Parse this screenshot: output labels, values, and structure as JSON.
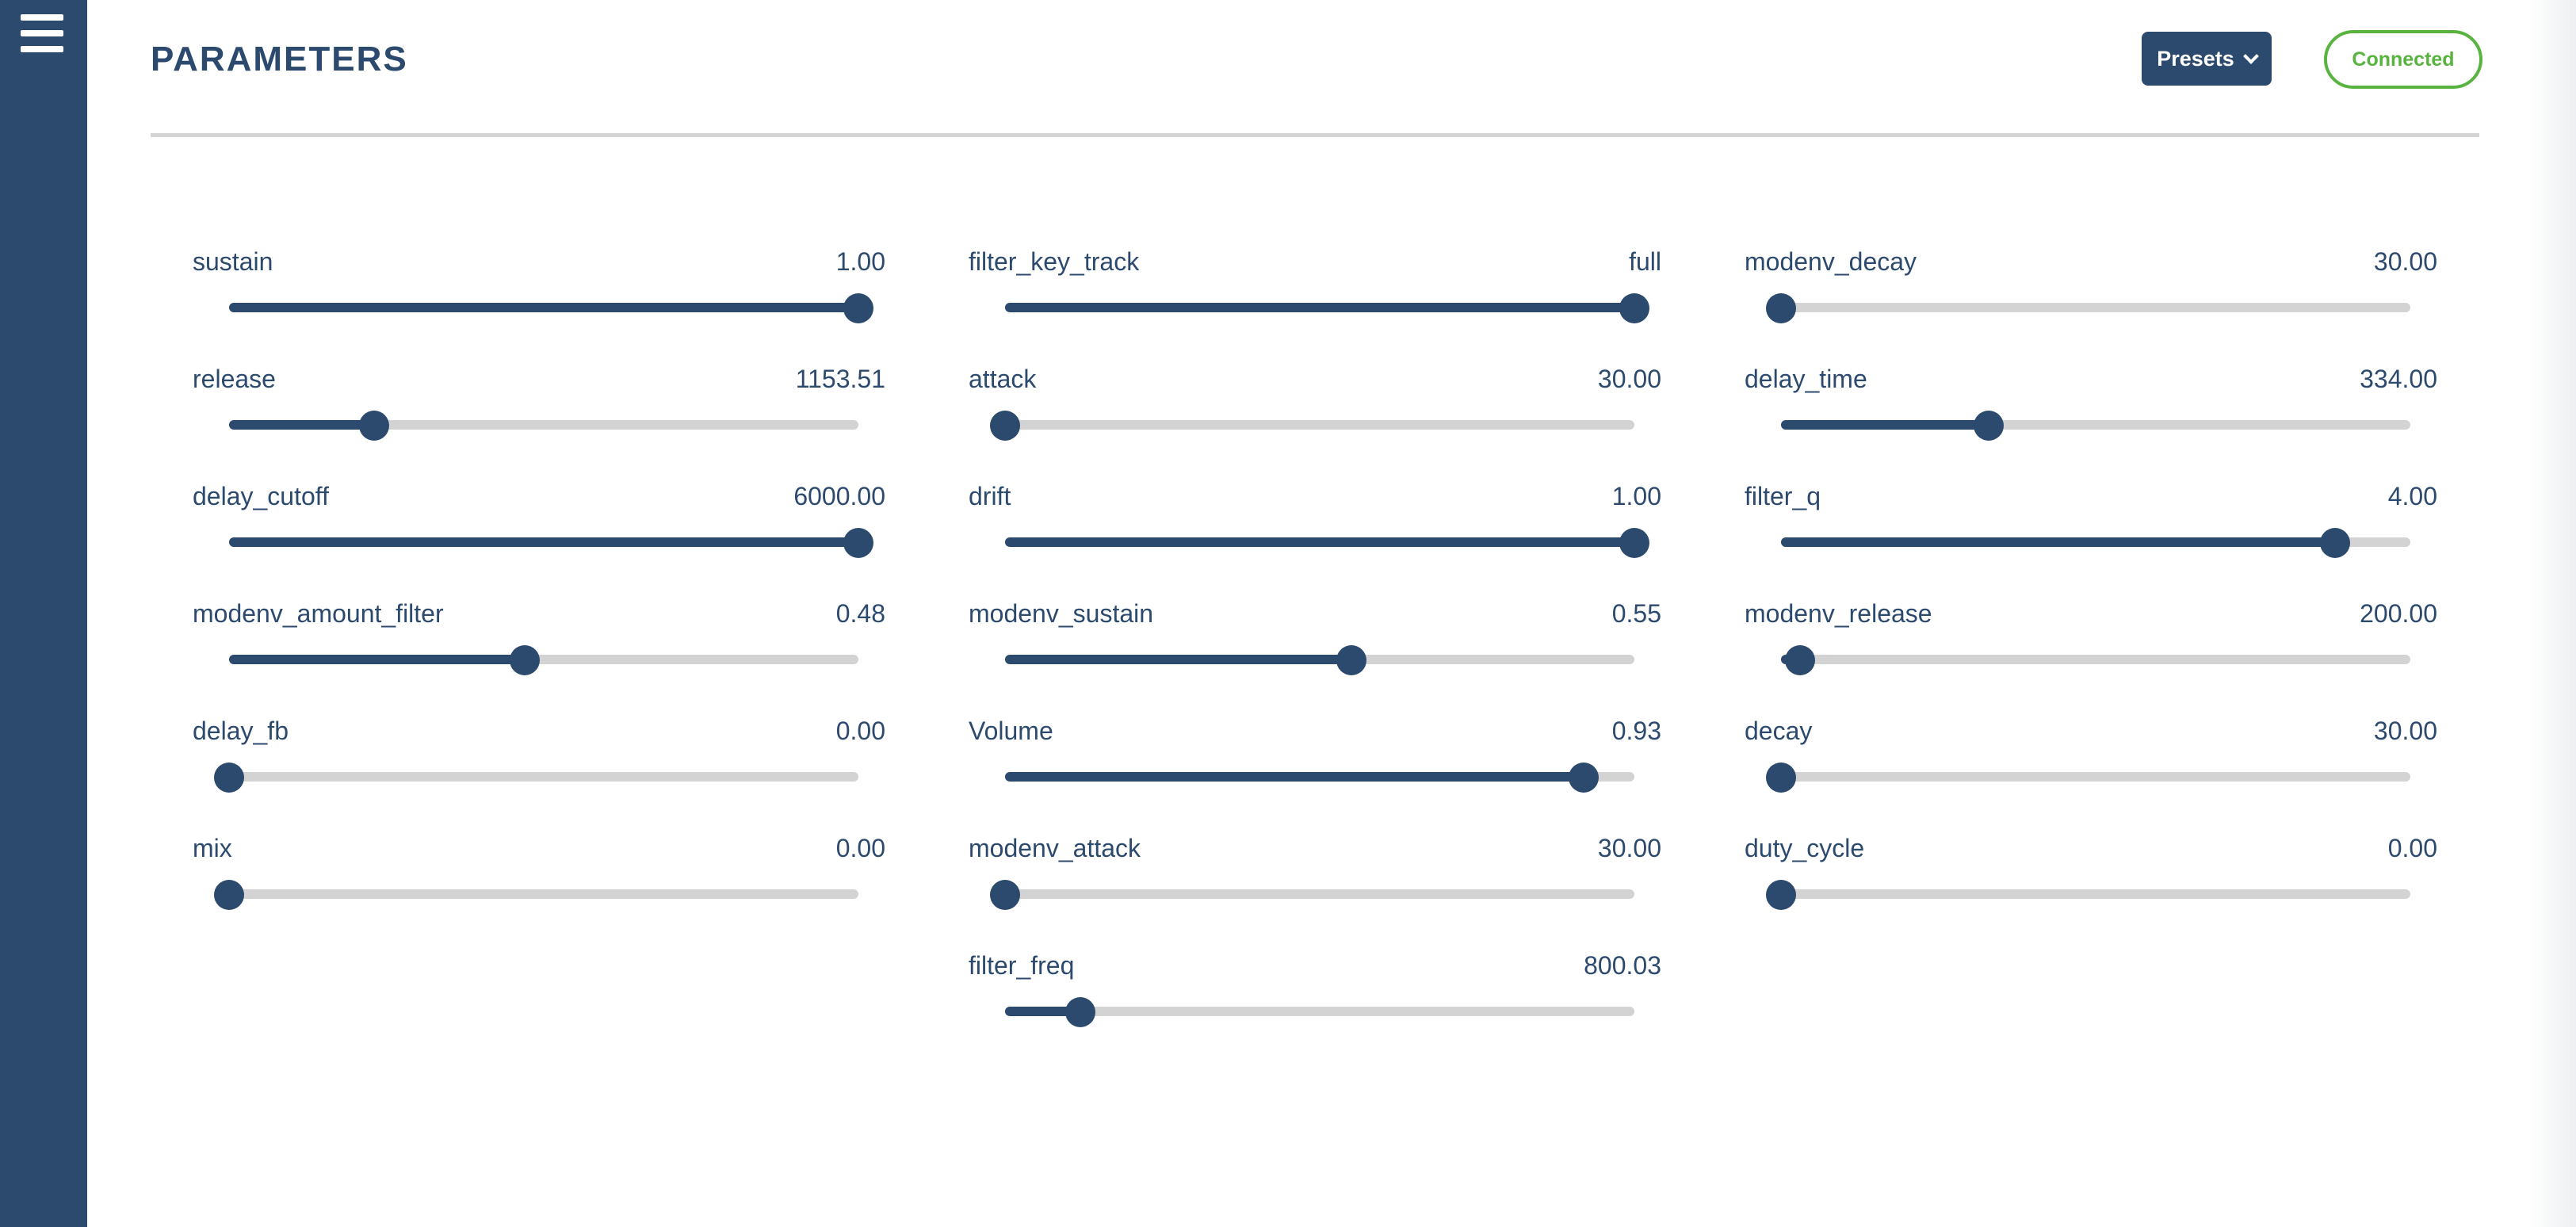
{
  "header": {
    "title": "PARAMETERS",
    "presets_label": "Presets",
    "status": "Connected"
  },
  "colors": {
    "primary": "#2c4a6e",
    "track": "#d3d3d3",
    "status_green": "#59b33f"
  },
  "columns": [
    [
      {
        "name": "sustain",
        "value": "1.00",
        "level": 1.0
      },
      {
        "name": "release",
        "value": "1153.51",
        "level": 0.23
      },
      {
        "name": "delay_cutoff",
        "value": "6000.00",
        "level": 1.0
      },
      {
        "name": "modenv_amount_filter",
        "value": "0.48",
        "level": 0.47
      },
      {
        "name": "delay_fb",
        "value": "0.00",
        "level": 0.0
      },
      {
        "name": "mix",
        "value": "0.00",
        "level": 0.0
      }
    ],
    [
      {
        "name": "filter_key_track",
        "value": "full",
        "level": 1.0
      },
      {
        "name": "attack",
        "value": "30.00",
        "level": 0.0
      },
      {
        "name": "drift",
        "value": "1.00",
        "level": 1.0
      },
      {
        "name": "modenv_sustain",
        "value": "0.55",
        "level": 0.55
      },
      {
        "name": "Volume",
        "value": "0.93",
        "level": 0.92
      },
      {
        "name": "modenv_attack",
        "value": "30.00",
        "level": 0.0
      },
      {
        "name": "filter_freq",
        "value": "800.03",
        "level": 0.12
      }
    ],
    [
      {
        "name": "modenv_decay",
        "value": "30.00",
        "level": 0.0
      },
      {
        "name": "delay_time",
        "value": "334.00",
        "level": 0.33
      },
      {
        "name": "filter_q",
        "value": "4.00",
        "level": 0.88
      },
      {
        "name": "modenv_release",
        "value": "200.00",
        "level": 0.03
      },
      {
        "name": "decay",
        "value": "30.00",
        "level": 0.0
      },
      {
        "name": "duty_cycle",
        "value": "0.00",
        "level": 0.0
      }
    ]
  ]
}
